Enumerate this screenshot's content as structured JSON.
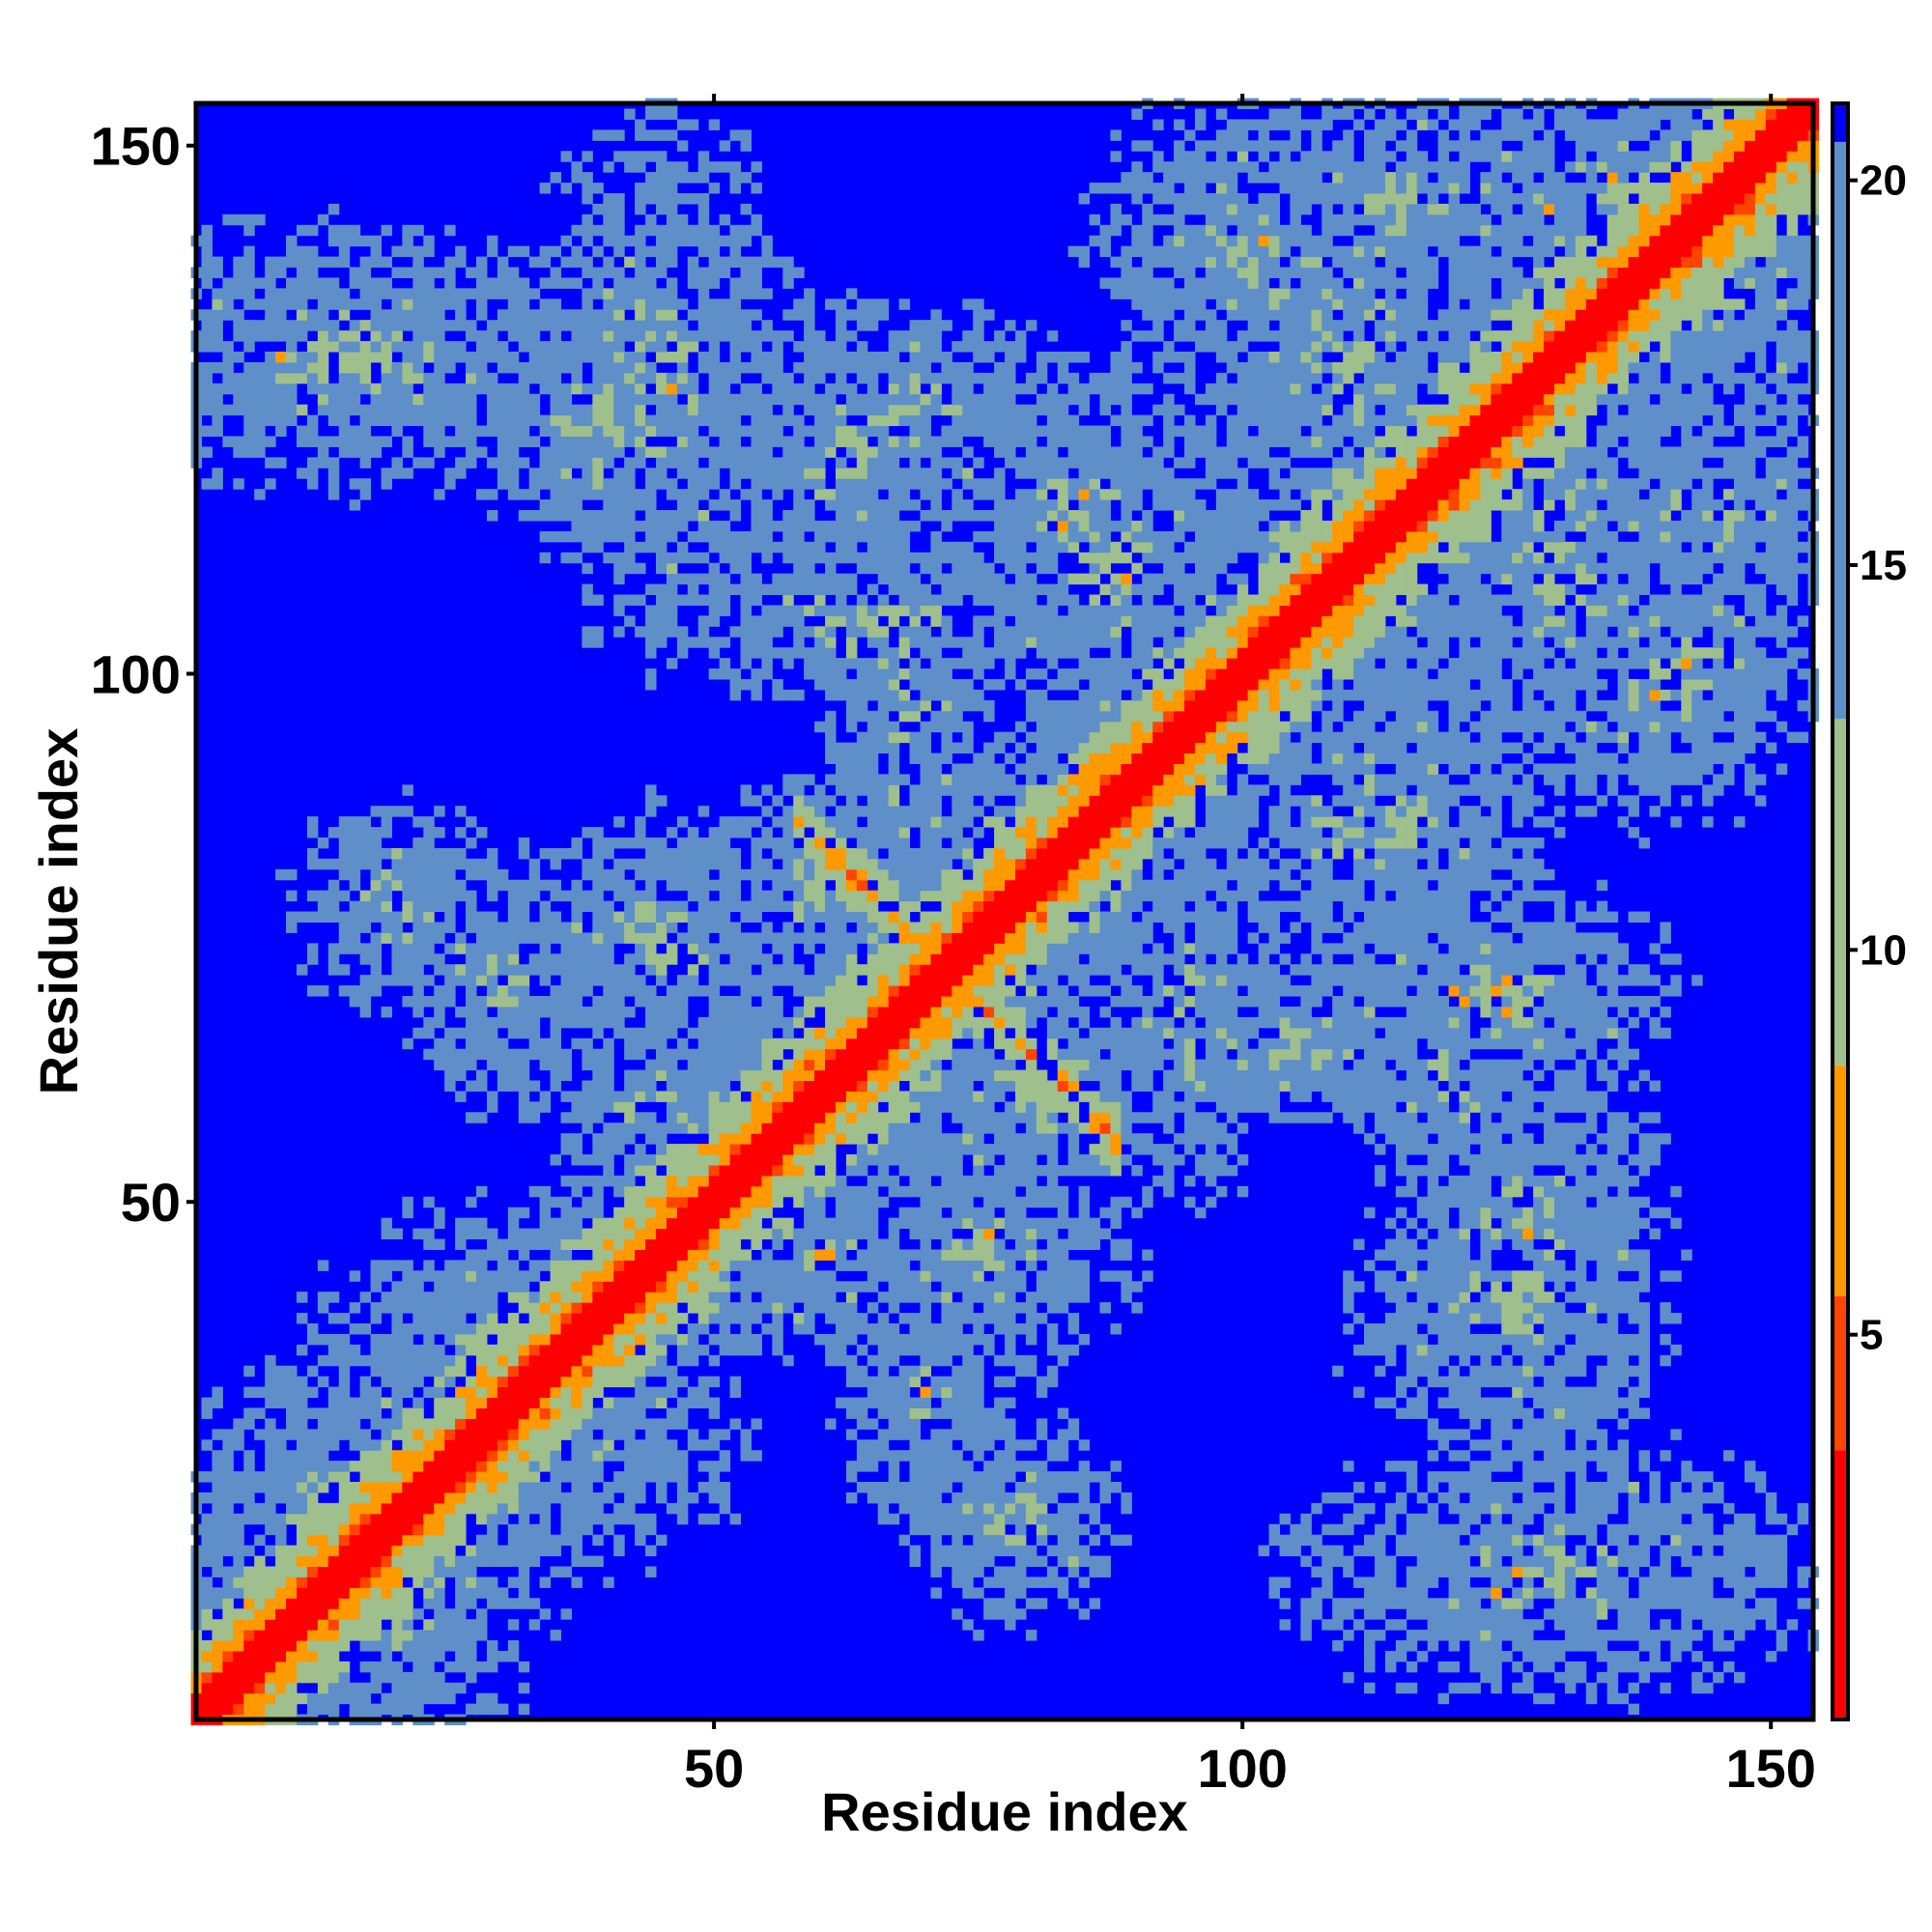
{
  "chart_data": {
    "type": "heatmap",
    "title": "",
    "xlabel": "Residue index",
    "ylabel": "Residue index",
    "xlim": [
      1,
      154
    ],
    "ylim": [
      1,
      154
    ],
    "x_ticks": [
      50,
      100,
      150
    ],
    "y_ticks": [
      50,
      100,
      150
    ],
    "x_tick_labels": [
      "50",
      "100",
      "150"
    ],
    "y_tick_labels": [
      "50",
      "100",
      "150"
    ],
    "colorbar": {
      "range": [
        0,
        21
      ],
      "ticks": [
        5,
        10,
        15,
        20
      ],
      "tick_labels": [
        "5",
        "10",
        "15",
        "20"
      ],
      "palette": [
        "#ff0000",
        "#ff4400",
        "#ff9900",
        "#9fbf8c",
        "#5e8fc8",
        "#0000ff"
      ]
    },
    "background_color": "#0000ff",
    "description_of_features": {
      "diagonal_band": {
        "from": 1,
        "to": 154
      },
      "anti_diagonal_contacts": [
        [
          58,
          86
        ],
        [
          88,
          56
        ]
      ],
      "contact_clusters_upper_left": [
        [
          10,
          130
        ],
        [
          20,
          75
        ]
      ],
      "contact_clusters_lower_right": [
        [
          130,
          20
        ],
        [
          75,
          20
        ]
      ]
    }
  }
}
